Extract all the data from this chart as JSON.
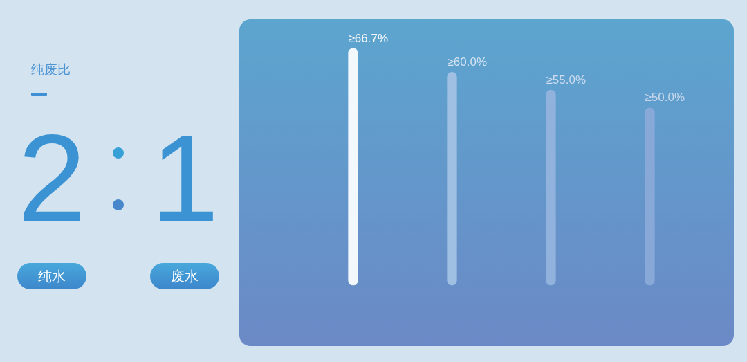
{
  "chart_data": [
    {
      "type": "other",
      "title": "纯废比",
      "categories": [
        "纯水",
        "废水"
      ],
      "values": [
        2,
        1
      ],
      "data_labels": true
    },
    {
      "type": "bar",
      "categories": [
        null,
        null,
        null,
        null
      ],
      "values": [
        66.7,
        60.0,
        55.0,
        50.0
      ],
      "value_labels": [
        "≥66.7%",
        "≥60.0%",
        "≥55.0%",
        "≥50.0%"
      ],
      "colors": [
        "#f3f8fd",
        "#a0c0e3",
        "#90b2dd",
        "#88a9d8"
      ],
      "tick_labels": false,
      "grid": false
    }
  ]
}
